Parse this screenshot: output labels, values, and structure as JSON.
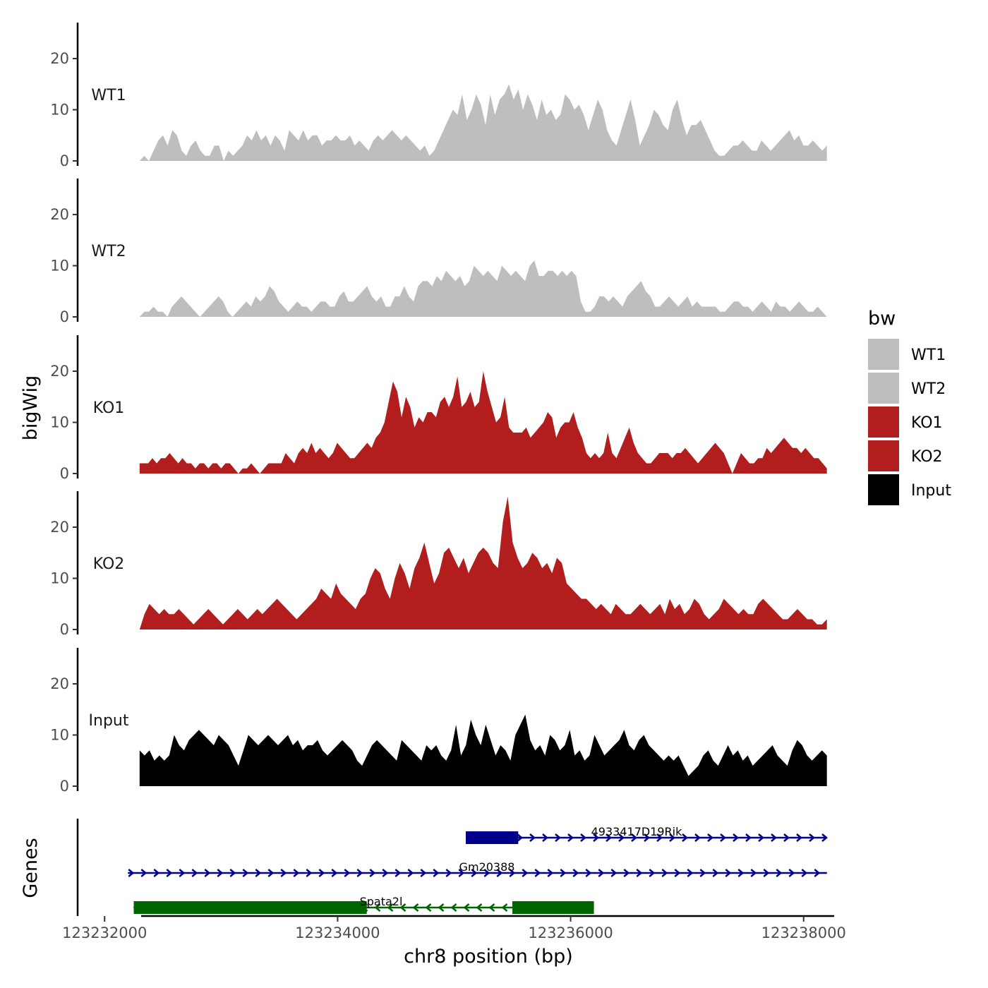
{
  "chart_data": {
    "type": "area",
    "title": "",
    "xlabel": "chr8 position (bp)",
    "ylabel": "bigWig",
    "genes_label": "Genes",
    "xlim": [
      123231950,
      123238250
    ],
    "ylim": [
      0,
      27
    ],
    "x_ticks": [
      123232000,
      123234000,
      123236000,
      123238000
    ],
    "x_tick_labels": [
      "123232000",
      "123234000",
      "123236000",
      "123238000"
    ],
    "y_ticks": [
      0,
      10,
      20
    ],
    "y_tick_labels": [
      "0",
      "10",
      "20"
    ],
    "data_range": [
      123232300,
      123238200
    ],
    "legend": {
      "title": "bw",
      "position": "right",
      "entries": [
        {
          "label": "WT1",
          "color": "#bebebe"
        },
        {
          "label": "WT2",
          "color": "#bebebe"
        },
        {
          "label": "KO1",
          "color": "#b21e1e"
        },
        {
          "label": "KO2",
          "color": "#b21e1e"
        },
        {
          "label": "Input",
          "color": "#000000"
        }
      ]
    },
    "series": [
      {
        "name": "WT1",
        "color": "#bebebe",
        "values": [
          0,
          1,
          0,
          2,
          4,
          5,
          3,
          6,
          5,
          2,
          1,
          3,
          4,
          2,
          1,
          1,
          3,
          3,
          0,
          2,
          1,
          2,
          3,
          5,
          4,
          6,
          4,
          5,
          3,
          5,
          4,
          2,
          6,
          5,
          4,
          6,
          4,
          5,
          5,
          3,
          4,
          4,
          5,
          4,
          4,
          5,
          3,
          4,
          3,
          2,
          4,
          5,
          4,
          5,
          6,
          5,
          4,
          5,
          4,
          3,
          2,
          3,
          1,
          2,
          4,
          6,
          8,
          10,
          9,
          13,
          8,
          10,
          13,
          11,
          7,
          13,
          9,
          12,
          13,
          15,
          12,
          14,
          10,
          13,
          11,
          8,
          12,
          9,
          10,
          8,
          9,
          13,
          12,
          10,
          11,
          9,
          6,
          9,
          12,
          10,
          6,
          4,
          3,
          6,
          9,
          12,
          8,
          3,
          5,
          7,
          10,
          9,
          7,
          6,
          10,
          12,
          8,
          5,
          7,
          7,
          8,
          6,
          4,
          2,
          1,
          1,
          2,
          3,
          3,
          4,
          3,
          2,
          2,
          4,
          3,
          2,
          3,
          4,
          5,
          6,
          4,
          5,
          3,
          3,
          4,
          3,
          2,
          3
        ],
        "labels_y": "WT1"
      },
      {
        "name": "WT2",
        "color": "#bebebe",
        "values": [
          0,
          1,
          1,
          2,
          1,
          1,
          0,
          2,
          3,
          4,
          3,
          2,
          1,
          0,
          1,
          2,
          3,
          4,
          3,
          1,
          0,
          1,
          2,
          3,
          2,
          4,
          3,
          4,
          6,
          5,
          3,
          2,
          1,
          2,
          3,
          2,
          2,
          1,
          2,
          3,
          3,
          2,
          2,
          4,
          5,
          3,
          3,
          4,
          5,
          6,
          4,
          3,
          4,
          2,
          2,
          4,
          4,
          6,
          4,
          3,
          6,
          7,
          7,
          6,
          8,
          7,
          9,
          8,
          7,
          8,
          6,
          7,
          10,
          9,
          8,
          9,
          8,
          7,
          10,
          9,
          8,
          9,
          8,
          7,
          10,
          11,
          8,
          8,
          9,
          9,
          8,
          9,
          8,
          9,
          8,
          3,
          1,
          1,
          2,
          4,
          4,
          3,
          4,
          3,
          2,
          4,
          5,
          6,
          7,
          5,
          4,
          2,
          2,
          3,
          4,
          3,
          2,
          3,
          4,
          2,
          3,
          2,
          2,
          2,
          2,
          1,
          1,
          2,
          3,
          3,
          2,
          2,
          1,
          2,
          3,
          2,
          1,
          3,
          2,
          2,
          1,
          2,
          3,
          2,
          1,
          1,
          2,
          1,
          0
        ],
        "labels_y": "WT2"
      },
      {
        "name": "KO1",
        "color": "#b21e1e",
        "values": [
          2,
          2,
          2,
          3,
          2,
          3,
          3,
          4,
          3,
          2,
          3,
          2,
          2,
          1,
          2,
          2,
          1,
          2,
          2,
          1,
          2,
          2,
          1,
          0,
          1,
          1,
          2,
          1,
          0,
          1,
          2,
          2,
          2,
          2,
          4,
          3,
          2,
          4,
          5,
          4,
          6,
          4,
          5,
          4,
          3,
          4,
          6,
          5,
          4,
          3,
          3,
          4,
          5,
          6,
          5,
          7,
          8,
          10,
          14,
          18,
          16,
          11,
          15,
          13,
          9,
          11,
          10,
          12,
          12,
          11,
          14,
          15,
          13,
          15,
          19,
          13,
          14,
          16,
          13,
          14,
          20,
          16,
          13,
          10,
          11,
          15,
          9,
          8,
          8,
          8,
          9,
          7,
          8,
          9,
          10,
          12,
          11,
          7,
          9,
          10,
          10,
          12,
          9,
          7,
          4,
          3,
          4,
          3,
          4,
          8,
          4,
          3,
          5,
          7,
          9,
          6,
          4,
          3,
          2,
          2,
          3,
          4,
          4,
          4,
          3,
          4,
          4,
          5,
          4,
          3,
          2,
          3,
          4,
          5,
          6,
          5,
          4,
          2,
          0,
          2,
          4,
          3,
          2,
          2,
          3,
          3,
          5,
          4,
          5,
          6,
          7,
          6,
          5,
          5,
          4,
          5,
          4,
          3,
          3,
          2,
          1
        ],
        "labels_y": "KO1"
      },
      {
        "name": "KO2",
        "color": "#b21e1e",
        "values": [
          0,
          3,
          5,
          4,
          3,
          4,
          3,
          3,
          4,
          3,
          2,
          1,
          2,
          3,
          4,
          3,
          2,
          1,
          2,
          3,
          4,
          3,
          2,
          3,
          4,
          3,
          4,
          5,
          6,
          5,
          4,
          3,
          2,
          3,
          4,
          5,
          6,
          8,
          7,
          6,
          9,
          7,
          6,
          5,
          4,
          6,
          7,
          10,
          12,
          11,
          8,
          6,
          10,
          13,
          11,
          8,
          12,
          14,
          17,
          13,
          9,
          11,
          15,
          16,
          14,
          12,
          14,
          11,
          13,
          15,
          16,
          15,
          13,
          12,
          21,
          26,
          17,
          14,
          12,
          13,
          15,
          14,
          12,
          13,
          11,
          14,
          13,
          9,
          8,
          7,
          6,
          6,
          5,
          4,
          5,
          4,
          3,
          5,
          4,
          3,
          3,
          4,
          5,
          4,
          3,
          4,
          5,
          3,
          6,
          4,
          5,
          3,
          4,
          6,
          5,
          3,
          2,
          3,
          4,
          6,
          5,
          4,
          3,
          4,
          3,
          3,
          5,
          6,
          5,
          4,
          3,
          2,
          2,
          3,
          4,
          3,
          2,
          2,
          1,
          1,
          2
        ],
        "labels_y": "KO2"
      },
      {
        "name": "Input",
        "color": "#000000",
        "values": [
          7,
          6,
          7,
          5,
          6,
          5,
          6,
          10,
          8,
          7,
          9,
          10,
          11,
          10,
          9,
          8,
          10,
          9,
          8,
          6,
          4,
          7,
          10,
          9,
          8,
          9,
          10,
          9,
          8,
          9,
          10,
          8,
          9,
          7,
          8,
          8,
          9,
          7,
          6,
          7,
          8,
          9,
          8,
          7,
          5,
          4,
          6,
          8,
          9,
          8,
          7,
          6,
          5,
          9,
          8,
          7,
          6,
          5,
          8,
          7,
          8,
          6,
          5,
          7,
          12,
          6,
          8,
          13,
          10,
          8,
          12,
          9,
          6,
          8,
          7,
          5,
          10,
          12,
          14,
          9,
          7,
          8,
          6,
          10,
          9,
          7,
          8,
          11,
          6,
          7,
          5,
          6,
          10,
          8,
          6,
          7,
          8,
          9,
          11,
          8,
          7,
          9,
          10,
          8,
          7,
          6,
          5,
          6,
          5,
          6,
          4,
          2,
          3,
          4,
          6,
          7,
          5,
          4,
          6,
          8,
          6,
          7,
          5,
          6,
          4,
          5,
          6,
          7,
          8,
          6,
          5,
          4,
          7,
          9,
          8,
          6,
          5,
          6,
          7,
          6
        ],
        "labels_y": "Input"
      }
    ],
    "genes": [
      {
        "name": "4933417D19Rik",
        "strand": "+",
        "color": "#00008b",
        "start": 123235100,
        "end": 123238200,
        "exons": [
          [
            123235100,
            123235550
          ]
        ]
      },
      {
        "name": "Gm20388",
        "strand": "+",
        "color": "#00008b",
        "start": 123232200,
        "end": 123238200,
        "exons": []
      },
      {
        "name": "Spata2l",
        "strand": "-",
        "color": "#006400",
        "start": 123232250,
        "end": 123236200,
        "exons": [
          [
            123232250,
            123234250
          ],
          [
            123235500,
            123236200
          ]
        ]
      }
    ]
  }
}
